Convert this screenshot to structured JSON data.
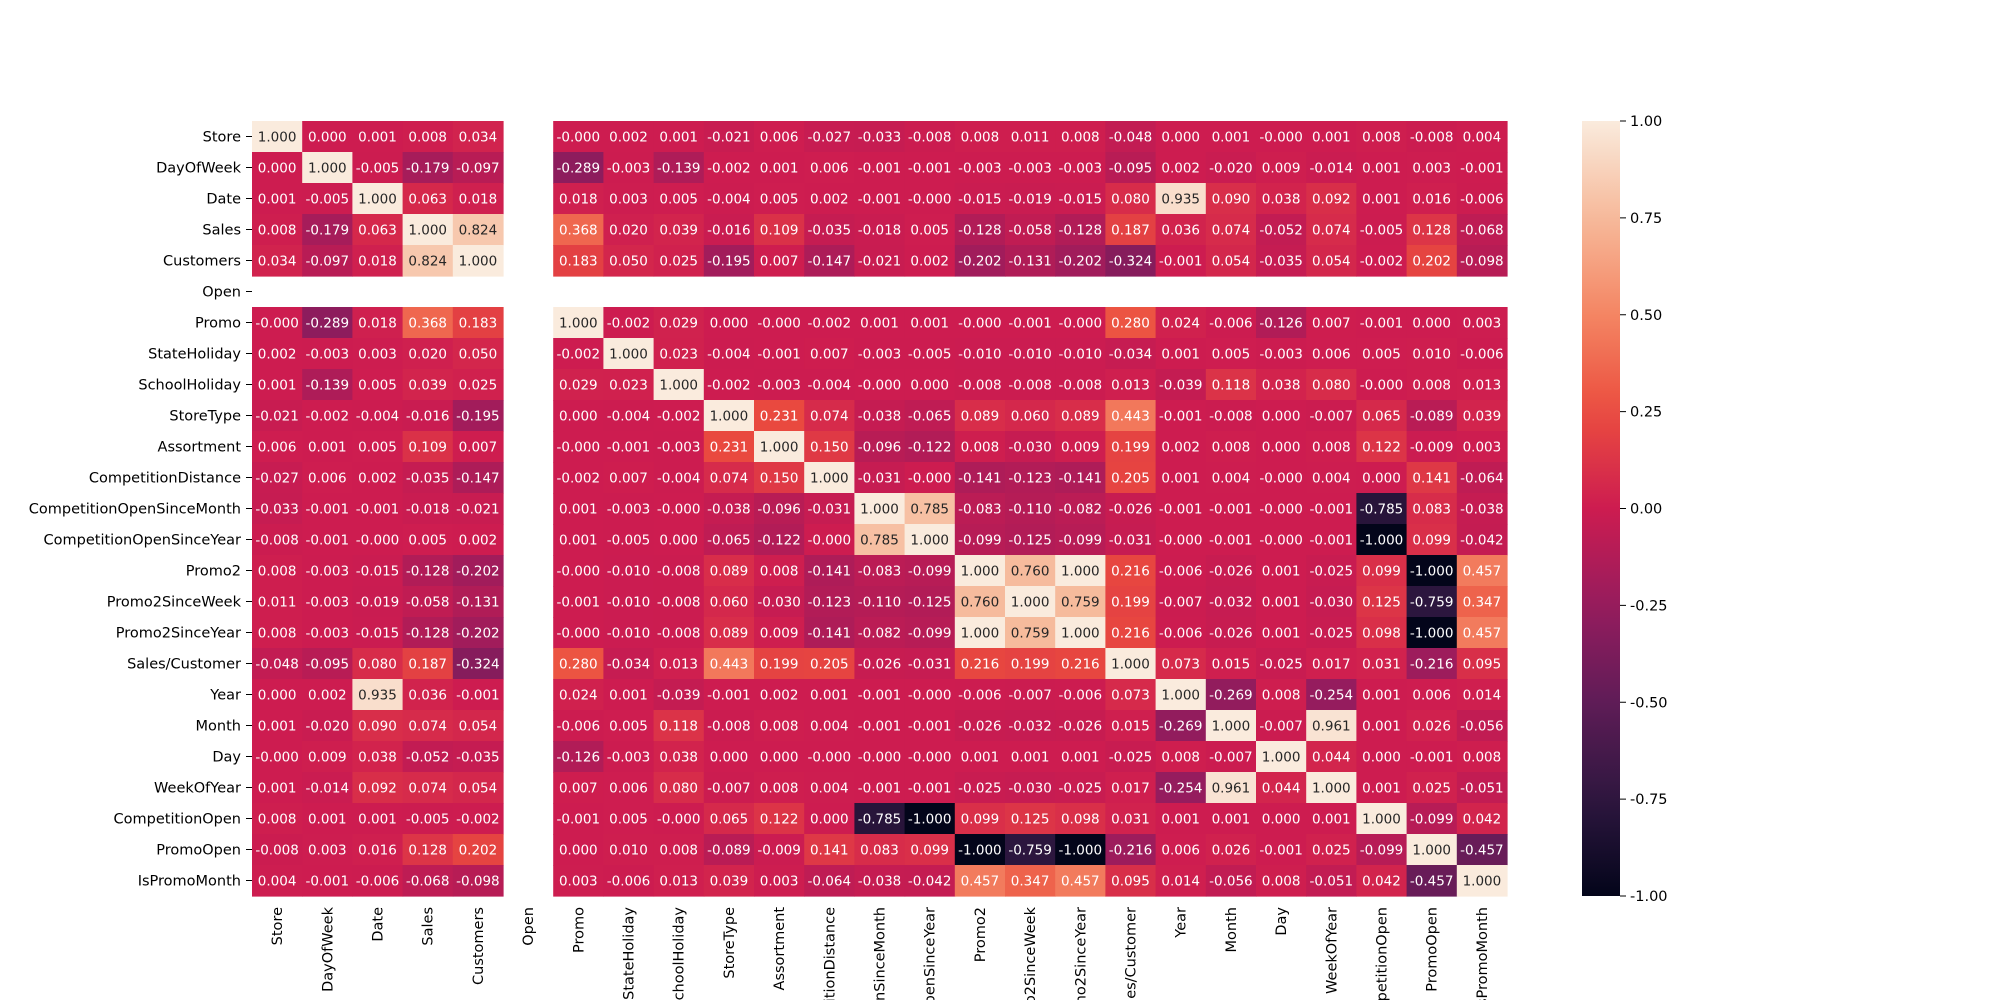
{
  "chart_data": {
    "type": "heatmap",
    "title": "",
    "xlabel": "",
    "ylabel": "",
    "x_labels_visible": [
      "Store",
      "DayOfWeek",
      "Date",
      "Sales",
      "Customers",
      "Open",
      "Promo",
      "StateHoliday",
      "SchoolHoliday",
      "StoreType",
      "Assortment",
      "titionDistance",
      "enSinceMonth",
      "OpenSinceYear",
      "Promo2",
      "o2SinceWeek",
      "mo2SinceYear",
      "ales/Customer",
      "Year",
      "Month",
      "Day",
      "WeekOfYear",
      "mpetitionOpen",
      "PromoOpen",
      "IsPromoMonth"
    ],
    "variables": [
      "Store",
      "DayOfWeek",
      "Date",
      "Sales",
      "Customers",
      "Open",
      "Promo",
      "StateHoliday",
      "SchoolHoliday",
      "StoreType",
      "Assortment",
      "CompetitionDistance",
      "CompetitionOpenSinceMonth",
      "CompetitionOpenSinceYear",
      "Promo2",
      "Promo2SinceWeek",
      "Promo2SinceYear",
      "Sales/Customer",
      "Year",
      "Month",
      "Day",
      "WeekOfYear",
      "CompetitionOpen",
      "PromoOpen",
      "IsPromoMonth"
    ],
    "values": [
      [
        "1.000",
        "0.000",
        "0.001",
        "0.008",
        "0.034",
        null,
        "-0.000",
        "0.002",
        "0.001",
        "-0.021",
        "0.006",
        "-0.027",
        "-0.033",
        "-0.008",
        "0.008",
        "0.011",
        "0.008",
        "-0.048",
        "0.000",
        "0.001",
        "-0.000",
        "0.001",
        "0.008",
        "-0.008",
        "0.004"
      ],
      [
        "0.000",
        "1.000",
        "-0.005",
        "-0.179",
        "-0.097",
        null,
        "-0.289",
        "-0.003",
        "-0.139",
        "-0.002",
        "0.001",
        "0.006",
        "-0.001",
        "-0.001",
        "-0.003",
        "-0.003",
        "-0.003",
        "-0.095",
        "0.002",
        "-0.020",
        "0.009",
        "-0.014",
        "0.001",
        "0.003",
        "-0.001"
      ],
      [
        "0.001",
        "-0.005",
        "1.000",
        "0.063",
        "0.018",
        null,
        "0.018",
        "0.003",
        "0.005",
        "-0.004",
        "0.005",
        "0.002",
        "-0.001",
        "-0.000",
        "-0.015",
        "-0.019",
        "-0.015",
        "0.080",
        "0.935",
        "0.090",
        "0.038",
        "0.092",
        "0.001",
        "0.016",
        "-0.006"
      ],
      [
        "0.008",
        "-0.179",
        "0.063",
        "1.000",
        "0.824",
        null,
        "0.368",
        "0.020",
        "0.039",
        "-0.016",
        "0.109",
        "-0.035",
        "-0.018",
        "0.005",
        "-0.128",
        "-0.058",
        "-0.128",
        "0.187",
        "0.036",
        "0.074",
        "-0.052",
        "0.074",
        "-0.005",
        "0.128",
        "-0.068"
      ],
      [
        "0.034",
        "-0.097",
        "0.018",
        "0.824",
        "1.000",
        null,
        "0.183",
        "0.050",
        "0.025",
        "-0.195",
        "0.007",
        "-0.147",
        "-0.021",
        "0.002",
        "-0.202",
        "-0.131",
        "-0.202",
        "-0.324",
        "-0.001",
        "0.054",
        "-0.035",
        "0.054",
        "-0.002",
        "0.202",
        "-0.098"
      ],
      [
        null,
        null,
        null,
        null,
        null,
        null,
        null,
        null,
        null,
        null,
        null,
        null,
        null,
        null,
        null,
        null,
        null,
        null,
        null,
        null,
        null,
        null,
        null,
        null,
        null
      ],
      [
        "-0.000",
        "-0.289",
        "0.018",
        "0.368",
        "0.183",
        null,
        "1.000",
        "-0.002",
        "0.029",
        "0.000",
        "-0.000",
        "-0.002",
        "0.001",
        "0.001",
        "-0.000",
        "-0.001",
        "-0.000",
        "0.280",
        "0.024",
        "-0.006",
        "-0.126",
        "0.007",
        "-0.001",
        "0.000",
        "0.003"
      ],
      [
        "0.002",
        "-0.003",
        "0.003",
        "0.020",
        "0.050",
        null,
        "-0.002",
        "1.000",
        "0.023",
        "-0.004",
        "-0.001",
        "0.007",
        "-0.003",
        "-0.005",
        "-0.010",
        "-0.010",
        "-0.010",
        "-0.034",
        "0.001",
        "0.005",
        "-0.003",
        "0.006",
        "0.005",
        "0.010",
        "-0.006"
      ],
      [
        "0.001",
        "-0.139",
        "0.005",
        "0.039",
        "0.025",
        null,
        "0.029",
        "0.023",
        "1.000",
        "-0.002",
        "-0.003",
        "-0.004",
        "-0.000",
        "0.000",
        "-0.008",
        "-0.008",
        "-0.008",
        "0.013",
        "-0.039",
        "0.118",
        "0.038",
        "0.080",
        "-0.000",
        "0.008",
        "0.013"
      ],
      [
        "-0.021",
        "-0.002",
        "-0.004",
        "-0.016",
        "-0.195",
        null,
        "0.000",
        "-0.004",
        "-0.002",
        "1.000",
        "0.231",
        "0.074",
        "-0.038",
        "-0.065",
        "0.089",
        "0.060",
        "0.089",
        "0.443",
        "-0.001",
        "-0.008",
        "0.000",
        "-0.007",
        "0.065",
        "-0.089",
        "0.039"
      ],
      [
        "0.006",
        "0.001",
        "0.005",
        "0.109",
        "0.007",
        null,
        "-0.000",
        "-0.001",
        "-0.003",
        "0.231",
        "1.000",
        "0.150",
        "-0.096",
        "-0.122",
        "0.008",
        "-0.030",
        "0.009",
        "0.199",
        "0.002",
        "0.008",
        "0.000",
        "0.008",
        "0.122",
        "-0.009",
        "0.003"
      ],
      [
        "-0.027",
        "0.006",
        "0.002",
        "-0.035",
        "-0.147",
        null,
        "-0.002",
        "0.007",
        "-0.004",
        "0.074",
        "0.150",
        "1.000",
        "-0.031",
        "-0.000",
        "-0.141",
        "-0.123",
        "-0.141",
        "0.205",
        "0.001",
        "0.004",
        "-0.000",
        "0.004",
        "0.000",
        "0.141",
        "-0.064"
      ],
      [
        "-0.033",
        "-0.001",
        "-0.001",
        "-0.018",
        "-0.021",
        null,
        "0.001",
        "-0.003",
        "-0.000",
        "-0.038",
        "-0.096",
        "-0.031",
        "1.000",
        "0.785",
        "-0.083",
        "-0.110",
        "-0.082",
        "-0.026",
        "-0.001",
        "-0.001",
        "-0.000",
        "-0.001",
        "-0.785",
        "0.083",
        "-0.038"
      ],
      [
        "-0.008",
        "-0.001",
        "-0.000",
        "0.005",
        "0.002",
        null,
        "0.001",
        "-0.005",
        "0.000",
        "-0.065",
        "-0.122",
        "-0.000",
        "0.785",
        "1.000",
        "-0.099",
        "-0.125",
        "-0.099",
        "-0.031",
        "-0.000",
        "-0.001",
        "-0.000",
        "-0.001",
        "-1.000",
        "0.099",
        "-0.042"
      ],
      [
        "0.008",
        "-0.003",
        "-0.015",
        "-0.128",
        "-0.202",
        null,
        "-0.000",
        "-0.010",
        "-0.008",
        "0.089",
        "0.008",
        "-0.141",
        "-0.083",
        "-0.099",
        "1.000",
        "0.760",
        "1.000",
        "0.216",
        "-0.006",
        "-0.026",
        "0.001",
        "-0.025",
        "0.099",
        "-1.000",
        "0.457"
      ],
      [
        "0.011",
        "-0.003",
        "-0.019",
        "-0.058",
        "-0.131",
        null,
        "-0.001",
        "-0.010",
        "-0.008",
        "0.060",
        "-0.030",
        "-0.123",
        "-0.110",
        "-0.125",
        "0.760",
        "1.000",
        "0.759",
        "0.199",
        "-0.007",
        "-0.032",
        "0.001",
        "-0.030",
        "0.125",
        "-0.759",
        "0.347"
      ],
      [
        "0.008",
        "-0.003",
        "-0.015",
        "-0.128",
        "-0.202",
        null,
        "-0.000",
        "-0.010",
        "-0.008",
        "0.089",
        "0.009",
        "-0.141",
        "-0.082",
        "-0.099",
        "1.000",
        "0.759",
        "1.000",
        "0.216",
        "-0.006",
        "-0.026",
        "0.001",
        "-0.025",
        "0.098",
        "-1.000",
        "0.457"
      ],
      [
        "-0.048",
        "-0.095",
        "0.080",
        "0.187",
        "-0.324",
        null,
        "0.280",
        "-0.034",
        "0.013",
        "0.443",
        "0.199",
        "0.205",
        "-0.026",
        "-0.031",
        "0.216",
        "0.199",
        "0.216",
        "1.000",
        "0.073",
        "0.015",
        "-0.025",
        "0.017",
        "0.031",
        "-0.216",
        "0.095"
      ],
      [
        "0.000",
        "0.002",
        "0.935",
        "0.036",
        "-0.001",
        null,
        "0.024",
        "0.001",
        "-0.039",
        "-0.001",
        "0.002",
        "0.001",
        "-0.001",
        "-0.000",
        "-0.006",
        "-0.007",
        "-0.006",
        "0.073",
        "1.000",
        "-0.269",
        "0.008",
        "-0.254",
        "0.001",
        "0.006",
        "0.014"
      ],
      [
        "0.001",
        "-0.020",
        "0.090",
        "0.074",
        "0.054",
        null,
        "-0.006",
        "0.005",
        "0.118",
        "-0.008",
        "0.008",
        "0.004",
        "-0.001",
        "-0.001",
        "-0.026",
        "-0.032",
        "-0.026",
        "0.015",
        "-0.269",
        "1.000",
        "-0.007",
        "0.961",
        "0.001",
        "0.026",
        "-0.056"
      ],
      [
        "-0.000",
        "0.009",
        "0.038",
        "-0.052",
        "-0.035",
        null,
        "-0.126",
        "-0.003",
        "0.038",
        "0.000",
        "0.000",
        "-0.000",
        "-0.000",
        "-0.000",
        "0.001",
        "0.001",
        "0.001",
        "-0.025",
        "0.008",
        "-0.007",
        "1.000",
        "0.044",
        "0.000",
        "-0.001",
        "0.008"
      ],
      [
        "0.001",
        "-0.014",
        "0.092",
        "0.074",
        "0.054",
        null,
        "0.007",
        "0.006",
        "0.080",
        "-0.007",
        "0.008",
        "0.004",
        "-0.001",
        "-0.001",
        "-0.025",
        "-0.030",
        "-0.025",
        "0.017",
        "-0.254",
        "0.961",
        "0.044",
        "1.000",
        "0.001",
        "0.025",
        "-0.051"
      ],
      [
        "0.008",
        "0.001",
        "0.001",
        "-0.005",
        "-0.002",
        null,
        "-0.001",
        "0.005",
        "-0.000",
        "0.065",
        "0.122",
        "0.000",
        "-0.785",
        "-1.000",
        "0.099",
        "0.125",
        "0.098",
        "0.031",
        "0.001",
        "0.001",
        "0.000",
        "0.001",
        "1.000",
        "-0.099",
        "0.042"
      ],
      [
        "-0.008",
        "0.003",
        "0.016",
        "0.128",
        "0.202",
        null,
        "0.000",
        "0.010",
        "0.008",
        "-0.089",
        "-0.009",
        "0.141",
        "0.083",
        "0.099",
        "-1.000",
        "-0.759",
        "-1.000",
        "-0.216",
        "0.006",
        "0.026",
        "-0.001",
        "0.025",
        "-0.099",
        "1.000",
        "-0.457"
      ],
      [
        "0.004",
        "-0.001",
        "-0.006",
        "-0.068",
        "-0.098",
        null,
        "0.003",
        "-0.006",
        "0.013",
        "0.039",
        "0.003",
        "-0.064",
        "-0.038",
        "-0.042",
        "0.457",
        "0.347",
        "0.457",
        "0.095",
        "0.014",
        "-0.056",
        "0.008",
        "-0.051",
        "0.042",
        "-0.457",
        "1.000"
      ]
    ],
    "colorbar": {
      "colormap": "rocket",
      "range": [
        -1.0,
        1.0
      ],
      "ticks": [
        "1.00",
        "0.75",
        "0.50",
        "0.25",
        "0.00",
        "-0.25",
        "-0.50",
        "-0.75",
        "-1.00"
      ],
      "tick_values": [
        1.0,
        0.75,
        0.5,
        0.25,
        0.0,
        -0.25,
        -0.5,
        -0.75,
        -1.0
      ]
    },
    "grid": false
  }
}
